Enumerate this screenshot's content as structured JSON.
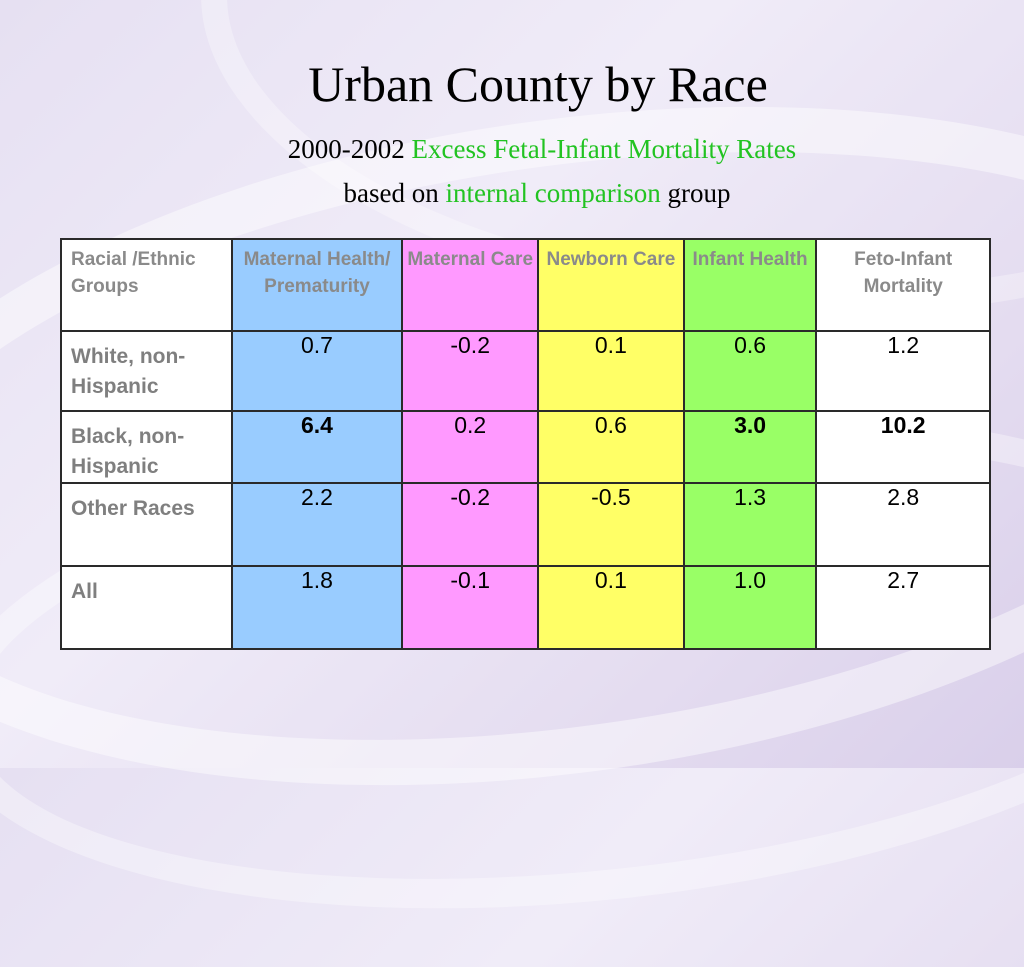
{
  "title": "Urban County by Race",
  "subtitle": {
    "years": "2000-2002",
    "metric": "Excess Fetal-Infant Mortality Rates"
  },
  "subtitle2": {
    "prefix": "based on",
    "highlight": "internal comparison",
    "suffix": "group"
  },
  "colors": {
    "maternal_health": "#99ccff",
    "maternal_care": "#ff99ff",
    "newborn_care": "#ffff66",
    "infant_health": "#99ff66",
    "feto_infant": "#ffffff",
    "highlight_text": "#22c322"
  },
  "table": {
    "headers": {
      "group": "Racial /Ethnic Groups",
      "maternal_health": "Maternal Health/ Prematurity",
      "maternal_care": "Maternal Care",
      "newborn_care": "Newborn Care",
      "infant_health": "Infant Health",
      "feto_infant": "Feto-Infant Mortality"
    },
    "rows": [
      {
        "group": "White, non-Hispanic",
        "maternal_health": "0.7",
        "maternal_care": "-0.2",
        "newborn_care": "0.1",
        "infant_health": "0.6",
        "feto_infant": "1.2"
      },
      {
        "group": "Black, non-Hispanic",
        "maternal_health": "6.4",
        "maternal_care": "0.2",
        "newborn_care": "0.6",
        "infant_health": "3.0",
        "feto_infant": "10.2"
      },
      {
        "group": "Other Races",
        "maternal_health": "2.2",
        "maternal_care": "-0.2",
        "newborn_care": "-0.5",
        "infant_health": "1.3",
        "feto_infant": "2.8"
      },
      {
        "group": "All",
        "maternal_health": "1.8",
        "maternal_care": "-0.1",
        "newborn_care": "0.1",
        "infant_health": "1.0",
        "feto_infant": "2.7"
      }
    ]
  }
}
